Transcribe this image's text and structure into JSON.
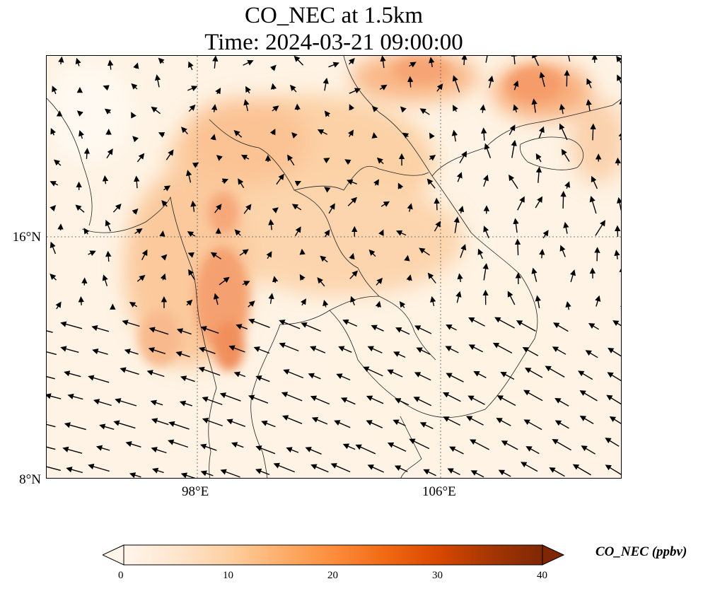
{
  "title": {
    "line1": "CO_NEC at 1.5km",
    "line2": "Time: 2024-03-21 09:00:00"
  },
  "map": {
    "variable": "CO_NEC",
    "level": "1.5km",
    "lat_ticks": [
      {
        "label": "16°N",
        "value": 16
      },
      {
        "label": "8°N",
        "value": 8
      }
    ],
    "lon_ticks": [
      {
        "label": "98°E",
        "value": 98
      },
      {
        "label": "106°E",
        "value": 106
      }
    ],
    "gridline_style": "dotted",
    "wind_vectors": "black arrows",
    "coastlines_and_borders": true
  },
  "colorbar": {
    "label": "CO_NEC (ppbv)",
    "min": 0,
    "max": 40,
    "extend": "both",
    "colormap": "Oranges",
    "ticks": [
      {
        "label": "0",
        "value": 0
      },
      {
        "label": "10",
        "value": 10
      },
      {
        "label": "20",
        "value": 20
      },
      {
        "label": "30",
        "value": 30
      },
      {
        "label": "40",
        "value": 40
      }
    ],
    "colors": [
      "#fff5eb",
      "#fee6ce",
      "#fdd0a2",
      "#fdae6b",
      "#fd8d3c",
      "#f16913",
      "#d94801",
      "#a63603",
      "#7f2704"
    ]
  }
}
